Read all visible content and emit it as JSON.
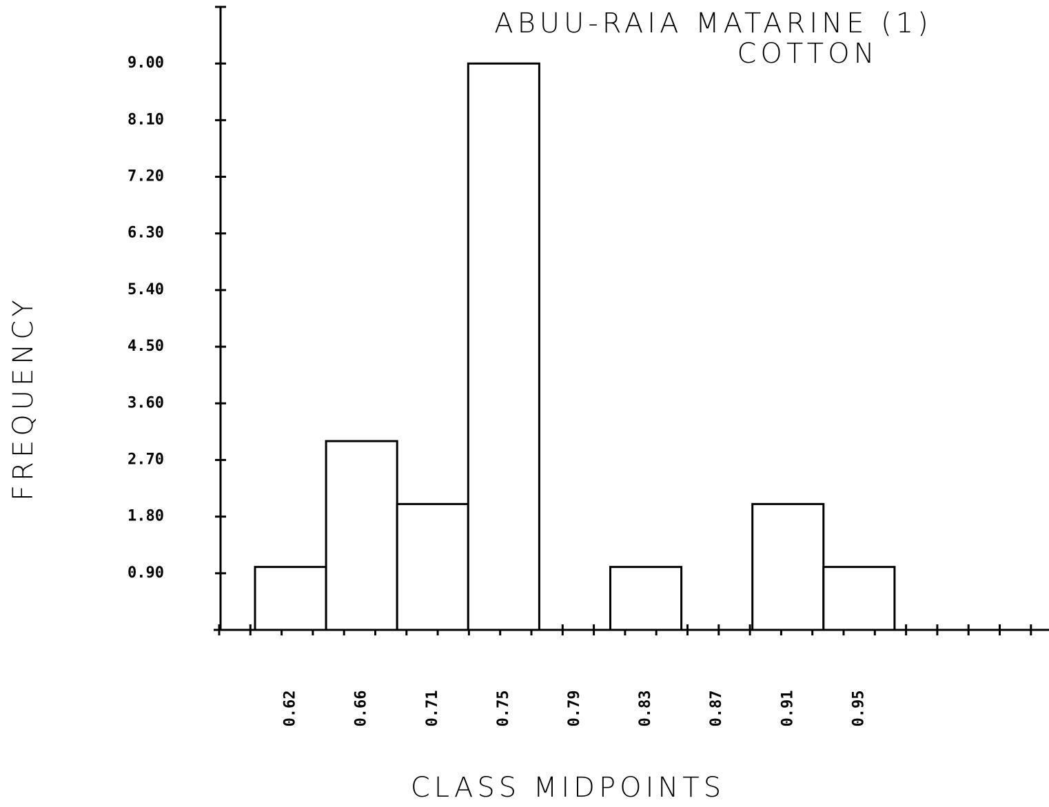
{
  "chart_data": {
    "type": "bar",
    "title": "ABUU-RAIA MATARINE (1)",
    "subtitle": "COTTON",
    "x_label": "CLASS MIDPOINTS",
    "y_label": "FREQUENCY",
    "categories": [
      "0.62",
      "0.66",
      "0.71",
      "0.75",
      "0.79",
      "0.83",
      "0.87",
      "0.91",
      "0.95"
    ],
    "values": [
      1,
      3,
      2,
      9,
      0,
      1,
      0,
      2,
      1
    ],
    "color": "#ffffff",
    "ylim": [
      0,
      9.9
    ],
    "yticks": [
      {
        "value": 0.9,
        "label": "0.90"
      },
      {
        "value": 1.8,
        "label": "1.80"
      },
      {
        "value": 2.7,
        "label": "2.70"
      },
      {
        "value": 3.6,
        "label": "3.60"
      },
      {
        "value": 4.5,
        "label": "4.50"
      },
      {
        "value": 5.4,
        "label": "5.40"
      },
      {
        "value": 6.3,
        "label": "6.30"
      },
      {
        "value": 7.2,
        "label": "7.20"
      },
      {
        "value": 8.1,
        "label": "8.10"
      },
      {
        "value": 9,
        "label": "9.00"
      }
    ],
    "grid": false
  }
}
